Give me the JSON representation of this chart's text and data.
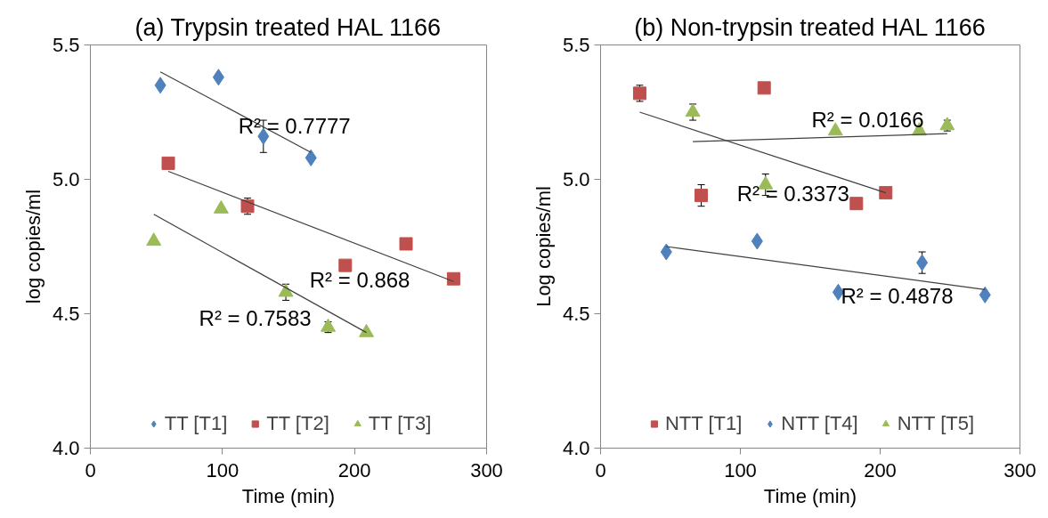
{
  "chart_data": [
    {
      "type": "scatter",
      "title": "(a) Trypsin treated HAL 1166",
      "xlabel": "Time (min)",
      "ylabel": "log copies/ml",
      "xlim": [
        0,
        300
      ],
      "xticks": [
        0,
        100,
        200,
        300
      ],
      "ylim": [
        4,
        5.5
      ],
      "yticks": [
        {
          "value": 4,
          "label": "4.0"
        },
        {
          "value": 4.5,
          "label": "4.5"
        },
        {
          "value": 5,
          "label": "5.0"
        },
        {
          "value": 5.5,
          "label": "5.5"
        }
      ],
      "grid": false,
      "legend": "bottom",
      "series": [
        {
          "name": "TT [T1]",
          "color": "#4f81bd",
          "marker": "diamond",
          "x": [
            53,
            97,
            131,
            167
          ],
          "values": [
            5.35,
            5.38,
            5.16,
            5.08
          ],
          "errors": [
            null,
            null,
            0.06,
            null
          ]
        },
        {
          "name": "TT [T2]",
          "color": "#c0504d",
          "marker": "square",
          "x": [
            59,
            119,
            193,
            239,
            275
          ],
          "values": [
            5.06,
            4.9,
            4.68,
            4.76,
            4.63
          ],
          "errors": [
            null,
            0.03,
            null,
            null,
            null
          ]
        },
        {
          "name": "TT [T3]",
          "color": "#9bbb59",
          "marker": "triangle",
          "x": [
            48,
            99,
            148,
            180,
            209
          ],
          "values": [
            4.77,
            4.89,
            4.58,
            4.45,
            4.43
          ],
          "errors": [
            null,
            null,
            0.03,
            0.02,
            null
          ]
        },
        {
          "type": "line",
          "color": "#404040",
          "x": [
            53,
            167
          ],
          "values": [
            5.4,
            5.1
          ]
        },
        {
          "type": "line",
          "color": "#404040",
          "x": [
            59,
            275
          ],
          "values": [
            5.03,
            4.62
          ]
        },
        {
          "type": "line",
          "color": "#404040",
          "x": [
            48,
            209
          ],
          "values": [
            4.87,
            4.43
          ]
        }
      ],
      "annotations": [
        "R² = 0.7777",
        "R² = 0.868",
        "R² = 0.7583"
      ]
    },
    {
      "type": "scatter",
      "title": "(b) Non-trypsin treated HAL 1166",
      "xlabel": "Time (min)",
      "ylabel": "Log copies/ml",
      "xlim": [
        0,
        300
      ],
      "xticks": [
        0,
        100,
        200,
        300
      ],
      "ylim": [
        4,
        5.5
      ],
      "yticks": [
        {
          "value": 4,
          "label": "4.0"
        },
        {
          "value": 4.5,
          "label": "4.5"
        },
        {
          "value": 5,
          "label": "5.0"
        },
        {
          "value": 5.5,
          "label": "5.5"
        }
      ],
      "grid": false,
      "legend": "bottom",
      "series": [
        {
          "name": "NTT [T1]",
          "color": "#c0504d",
          "marker": "square",
          "x": [
            28,
            72,
            117,
            183,
            204
          ],
          "values": [
            5.32,
            4.94,
            5.34,
            4.91,
            4.95
          ],
          "errors": [
            0.03,
            0.04,
            null,
            null,
            null
          ]
        },
        {
          "name": "NTT [T4]",
          "color": "#4f81bd",
          "marker": "diamond",
          "x": [
            47,
            112,
            170,
            230,
            275
          ],
          "values": [
            4.73,
            4.77,
            4.58,
            4.69,
            4.57
          ],
          "errors": [
            null,
            null,
            null,
            0.04,
            null
          ]
        },
        {
          "name": "NTT [T5]",
          "color": "#9bbb59",
          "marker": "triangle",
          "x": [
            66,
            118,
            168,
            228,
            248
          ],
          "values": [
            5.25,
            4.98,
            5.18,
            5.18,
            5.2
          ],
          "errors": [
            0.03,
            0.04,
            null,
            0.01,
            0.02
          ]
        },
        {
          "type": "line",
          "color": "#404040",
          "x": [
            28,
            204
          ],
          "values": [
            5.25,
            4.95
          ]
        },
        {
          "type": "line",
          "color": "#404040",
          "x": [
            47,
            275
          ],
          "values": [
            4.75,
            4.59
          ]
        },
        {
          "type": "line",
          "color": "#404040",
          "x": [
            66,
            248
          ],
          "values": [
            5.14,
            5.17
          ]
        }
      ],
      "annotations": [
        "R² = 0.0166",
        "R² = 0.3373",
        "R² = 0.4878"
      ]
    }
  ]
}
